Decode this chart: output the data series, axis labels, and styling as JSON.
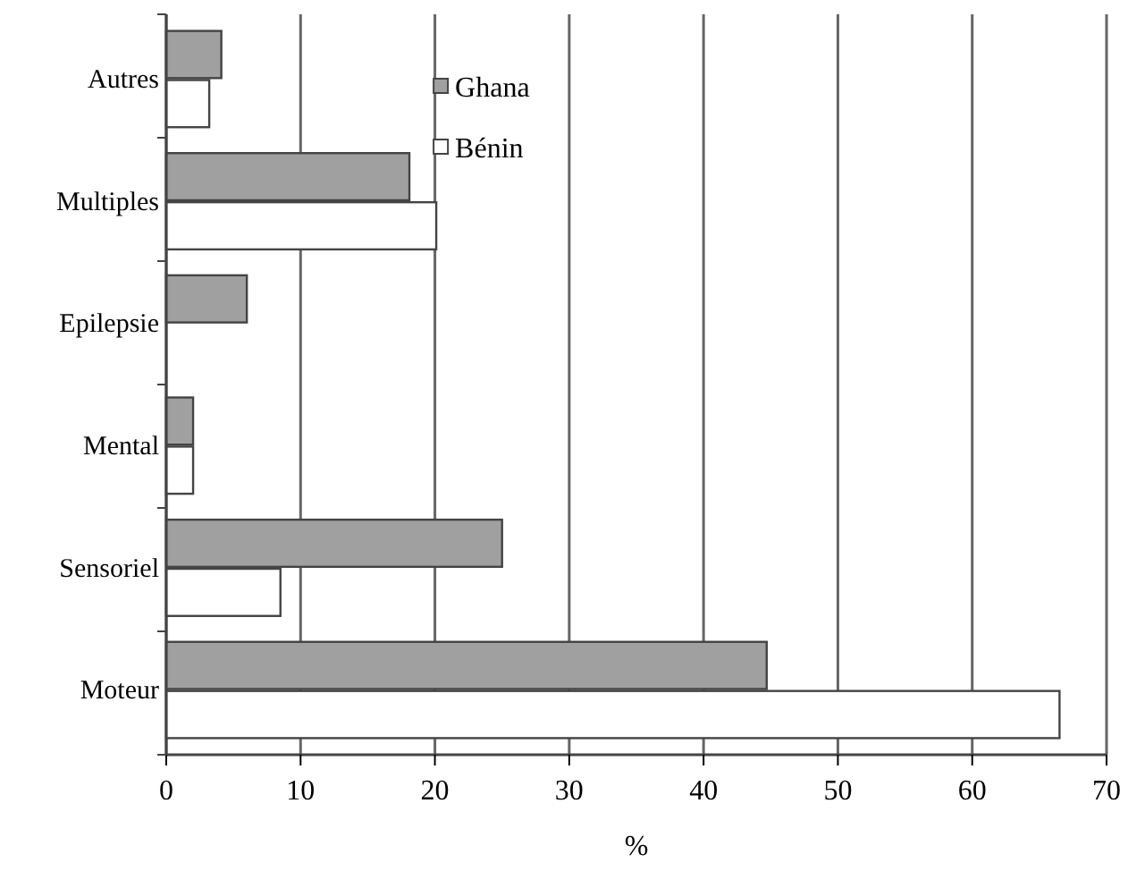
{
  "chart_data": {
    "type": "bar",
    "orientation": "horizontal",
    "xlabel": "%",
    "categories": [
      "Autres",
      "Multiples",
      "Epilepsie",
      "Mental",
      "Sensoriel",
      "Moteur"
    ],
    "series": [
      {
        "name": "Ghana",
        "color": "#a0a0a0",
        "values": [
          4.1,
          18.1,
          6.0,
          2.0,
          25.0,
          44.7
        ]
      },
      {
        "name": "Bénin",
        "color": "#ffffff",
        "values": [
          3.2,
          20.1,
          null,
          2.0,
          8.5,
          66.5
        ]
      }
    ],
    "xlim": [
      0,
      70
    ],
    "xticks": [
      0,
      10,
      20,
      30,
      40,
      50,
      60,
      70
    ],
    "grid": "x",
    "legend": "top"
  }
}
